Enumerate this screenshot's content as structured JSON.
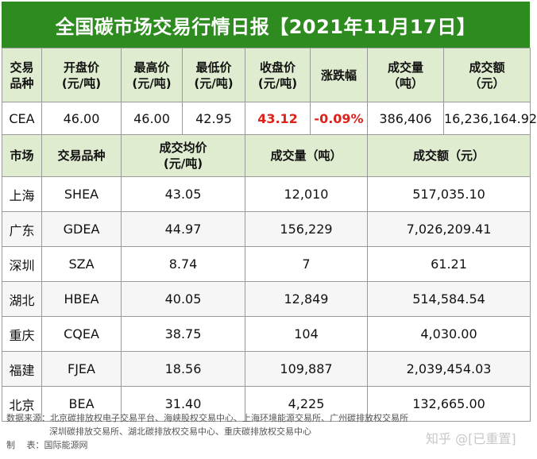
{
  "title": "全国碳市场交易行情日报【2021年11月17日】",
  "cea_table": {
    "headers": [
      {
        "l1": "交易",
        "l2": "品种"
      },
      {
        "l1": "开盘价",
        "l2": "(元/吨)"
      },
      {
        "l1": "最高价",
        "l2": "(元/吨)"
      },
      {
        "l1": "最低价",
        "l2": "(元/吨)"
      },
      {
        "l1": "收盘价",
        "l2": "(元/吨)"
      },
      {
        "l1": "涨跌幅",
        "l2": ""
      },
      {
        "l1": "成交量",
        "l2": "（吨）"
      },
      {
        "l1": "成交额",
        "l2": "（元）"
      }
    ],
    "row": [
      "CEA",
      "46.00",
      "46.00",
      "42.95",
      "43.12",
      "-0.09%",
      "386,406",
      "16,236,164.92"
    ]
  },
  "local_table": {
    "headers": [
      {
        "l1": "市场",
        "l2": ""
      },
      {
        "l1": "交易品种",
        "l2": ""
      },
      {
        "l1": "成交均价",
        "l2": "(元/吨)"
      },
      {
        "l1": "成交量（吨）",
        "l2": ""
      },
      {
        "l1": "成交额（元）",
        "l2": ""
      }
    ],
    "rows": [
      [
        "上海",
        "SHEA",
        "43.05",
        "12,010",
        "517,035.10"
      ],
      [
        "广东",
        "GDEA",
        "44.97",
        "156,229",
        "7,026,209.41"
      ],
      [
        "深圳",
        "SZA",
        "8.74",
        "7",
        "61.21"
      ],
      [
        "湖北",
        "HBEA",
        "40.05",
        "12,849",
        "514,584.54"
      ],
      [
        "重庆",
        "CQEA",
        "38.75",
        "104",
        "4,030.00"
      ],
      [
        "福建",
        "FJEA",
        "18.56",
        "109,887",
        "2,039,454.03"
      ],
      [
        "北京",
        "BEA",
        "31.40",
        "4,225",
        "132,665.00"
      ]
    ]
  },
  "footer": {
    "source_line1": "数据来源：北京碳排放权电子交易平台、海峡股权交易中心、上海环境能源交易所、广州碳排放权交易所",
    "source_line2": "深圳碳排放交易所、湖北碳排放权交易中心、重庆碳排放权交易中心",
    "maker": "制　 表：国际能源网"
  },
  "watermark": "知乎 @[已重置]",
  "colors": {
    "title_bg": "#2e8b1f",
    "header_bg": "#dfeccf",
    "highlight": "#e0201a"
  }
}
